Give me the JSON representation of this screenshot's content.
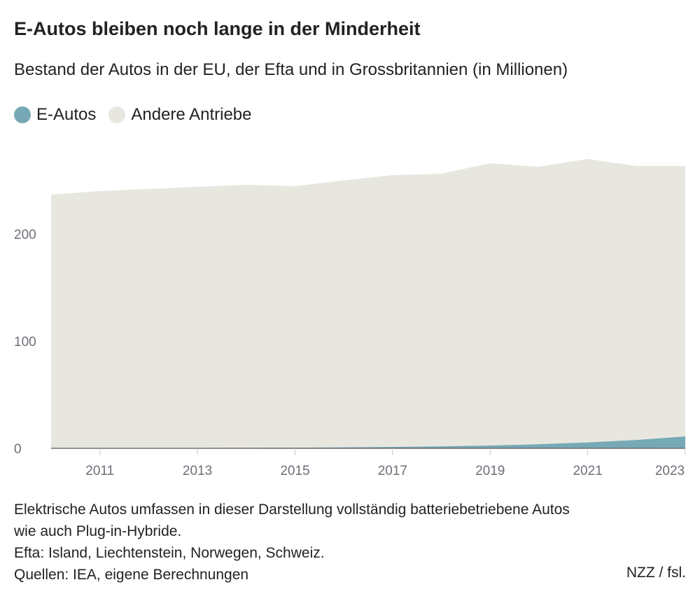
{
  "chart_data": {
    "type": "area",
    "stacked": true,
    "title": "E-Autos bleiben noch lange in der Minderheit",
    "subtitle": "Bestand der Autos in der EU, der Efta und in Grossbritannien (in Millionen)",
    "x": [
      2010,
      2011,
      2012,
      2013,
      2014,
      2015,
      2016,
      2017,
      2018,
      2019,
      2020,
      2021,
      2022,
      2023
    ],
    "series": [
      {
        "name": "E-Autos",
        "color": "#76a9b5",
        "values": [
          0.1,
          0.1,
          0.2,
          0.3,
          0.4,
          0.6,
          0.9,
          1.3,
          1.8,
          2.6,
          3.8,
          5.5,
          7.8,
          11.1
        ]
      },
      {
        "name": "Andere Antriebe",
        "color": "#e8e7df",
        "values": [
          236.7,
          239.9,
          241.8,
          243.7,
          245.4,
          244.0,
          249.1,
          253.6,
          254.4,
          263.4,
          258.9,
          264.5,
          255.6,
          252.3
        ]
      }
    ],
    "xticks": [
      "2011",
      "2013",
      "2015",
      "2017",
      "2019",
      "2021",
      "2023"
    ],
    "yticks": [
      "0",
      "100",
      "200"
    ],
    "ylim": [
      0,
      270
    ],
    "xlim": [
      2010,
      2023
    ],
    "grid": false,
    "legend": "top-left"
  },
  "notes": [
    "Elektrische Autos umfassen in dieser Darstellung vollständig batteriebetriebene Autos",
    "wie auch Plug-in-Hybride.",
    "Efta: Island, Liechtenstein, Norwegen, Schweiz.",
    "Quellen: IEA, eigene Berechnungen"
  ],
  "credit": "NZZ / fsl."
}
